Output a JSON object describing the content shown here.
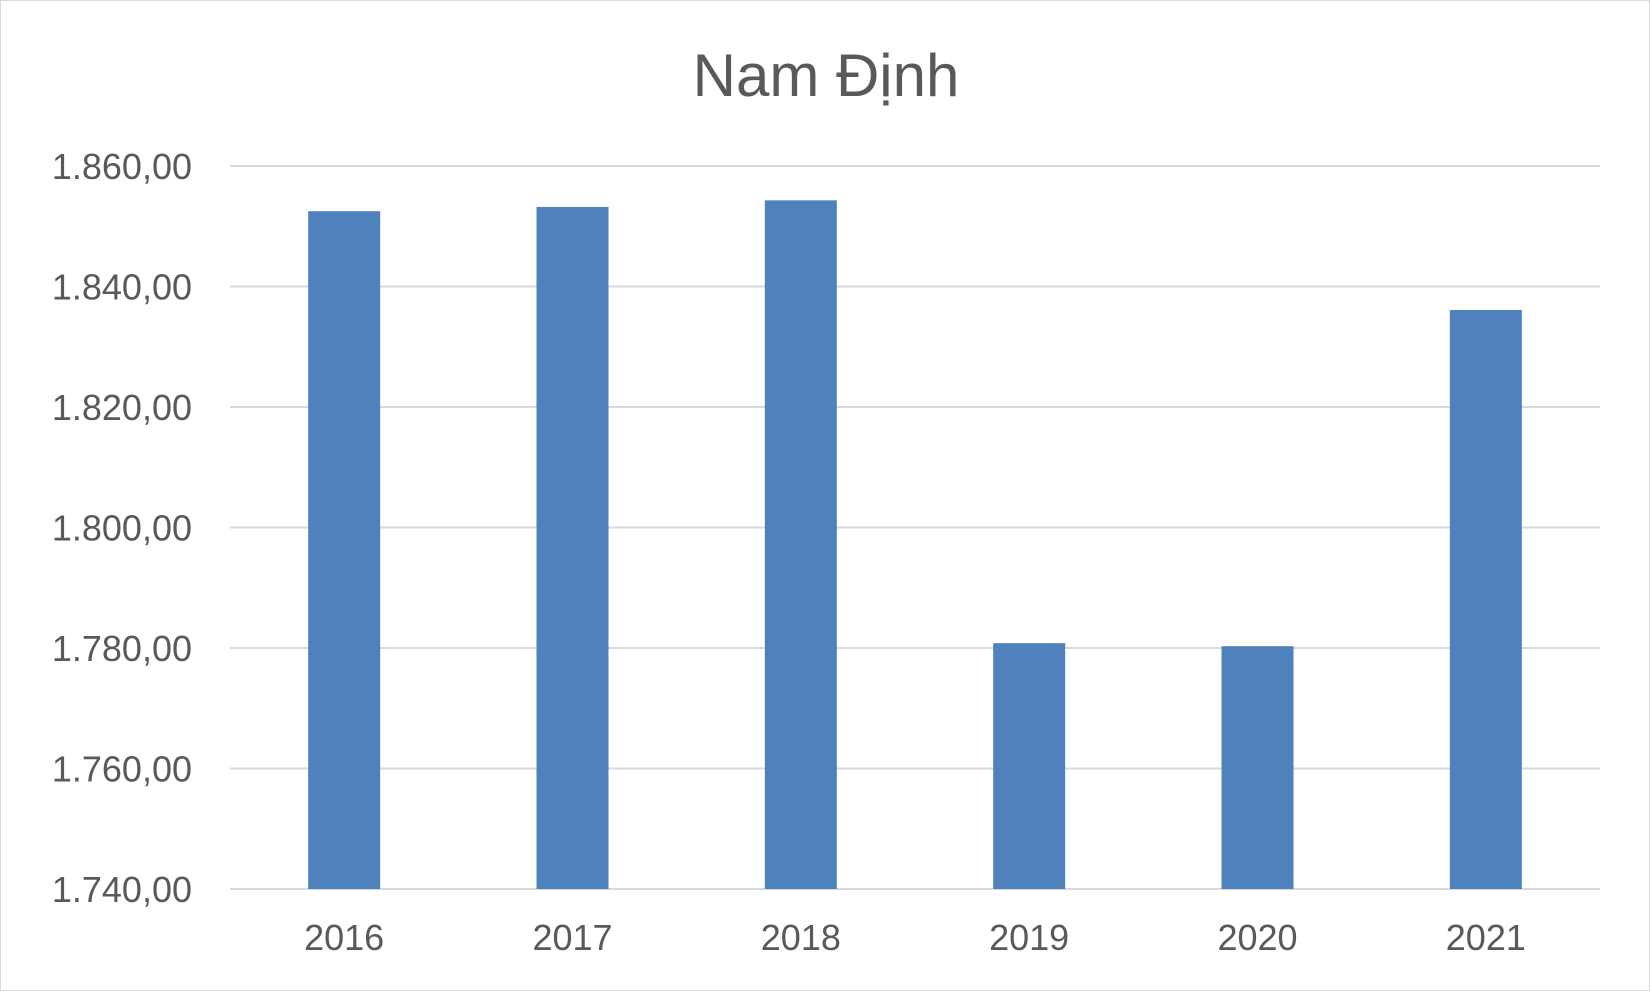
{
  "chart_data": {
    "type": "bar",
    "title": "Nam Định",
    "xlabel": "",
    "ylabel": "",
    "categories": [
      "2016",
      "2017",
      "2018",
      "2019",
      "2020",
      "2021"
    ],
    "values": [
      1852.5,
      1853.2,
      1854.3,
      1780.8,
      1780.3,
      1836.1
    ],
    "ylim": [
      1740,
      1860
    ],
    "yticks": [
      1740,
      1760,
      1780,
      1800,
      1820,
      1840,
      1860
    ],
    "ytick_labels": [
      "1.740,00",
      "1.760,00",
      "1.780,00",
      "1.800,00",
      "1.820,00",
      "1.840,00",
      "1.860,00"
    ],
    "grid": true,
    "legend": "none",
    "colors": {
      "bar": "#4f81bd",
      "grid": "#d9d9d9",
      "text": "#595959"
    }
  }
}
